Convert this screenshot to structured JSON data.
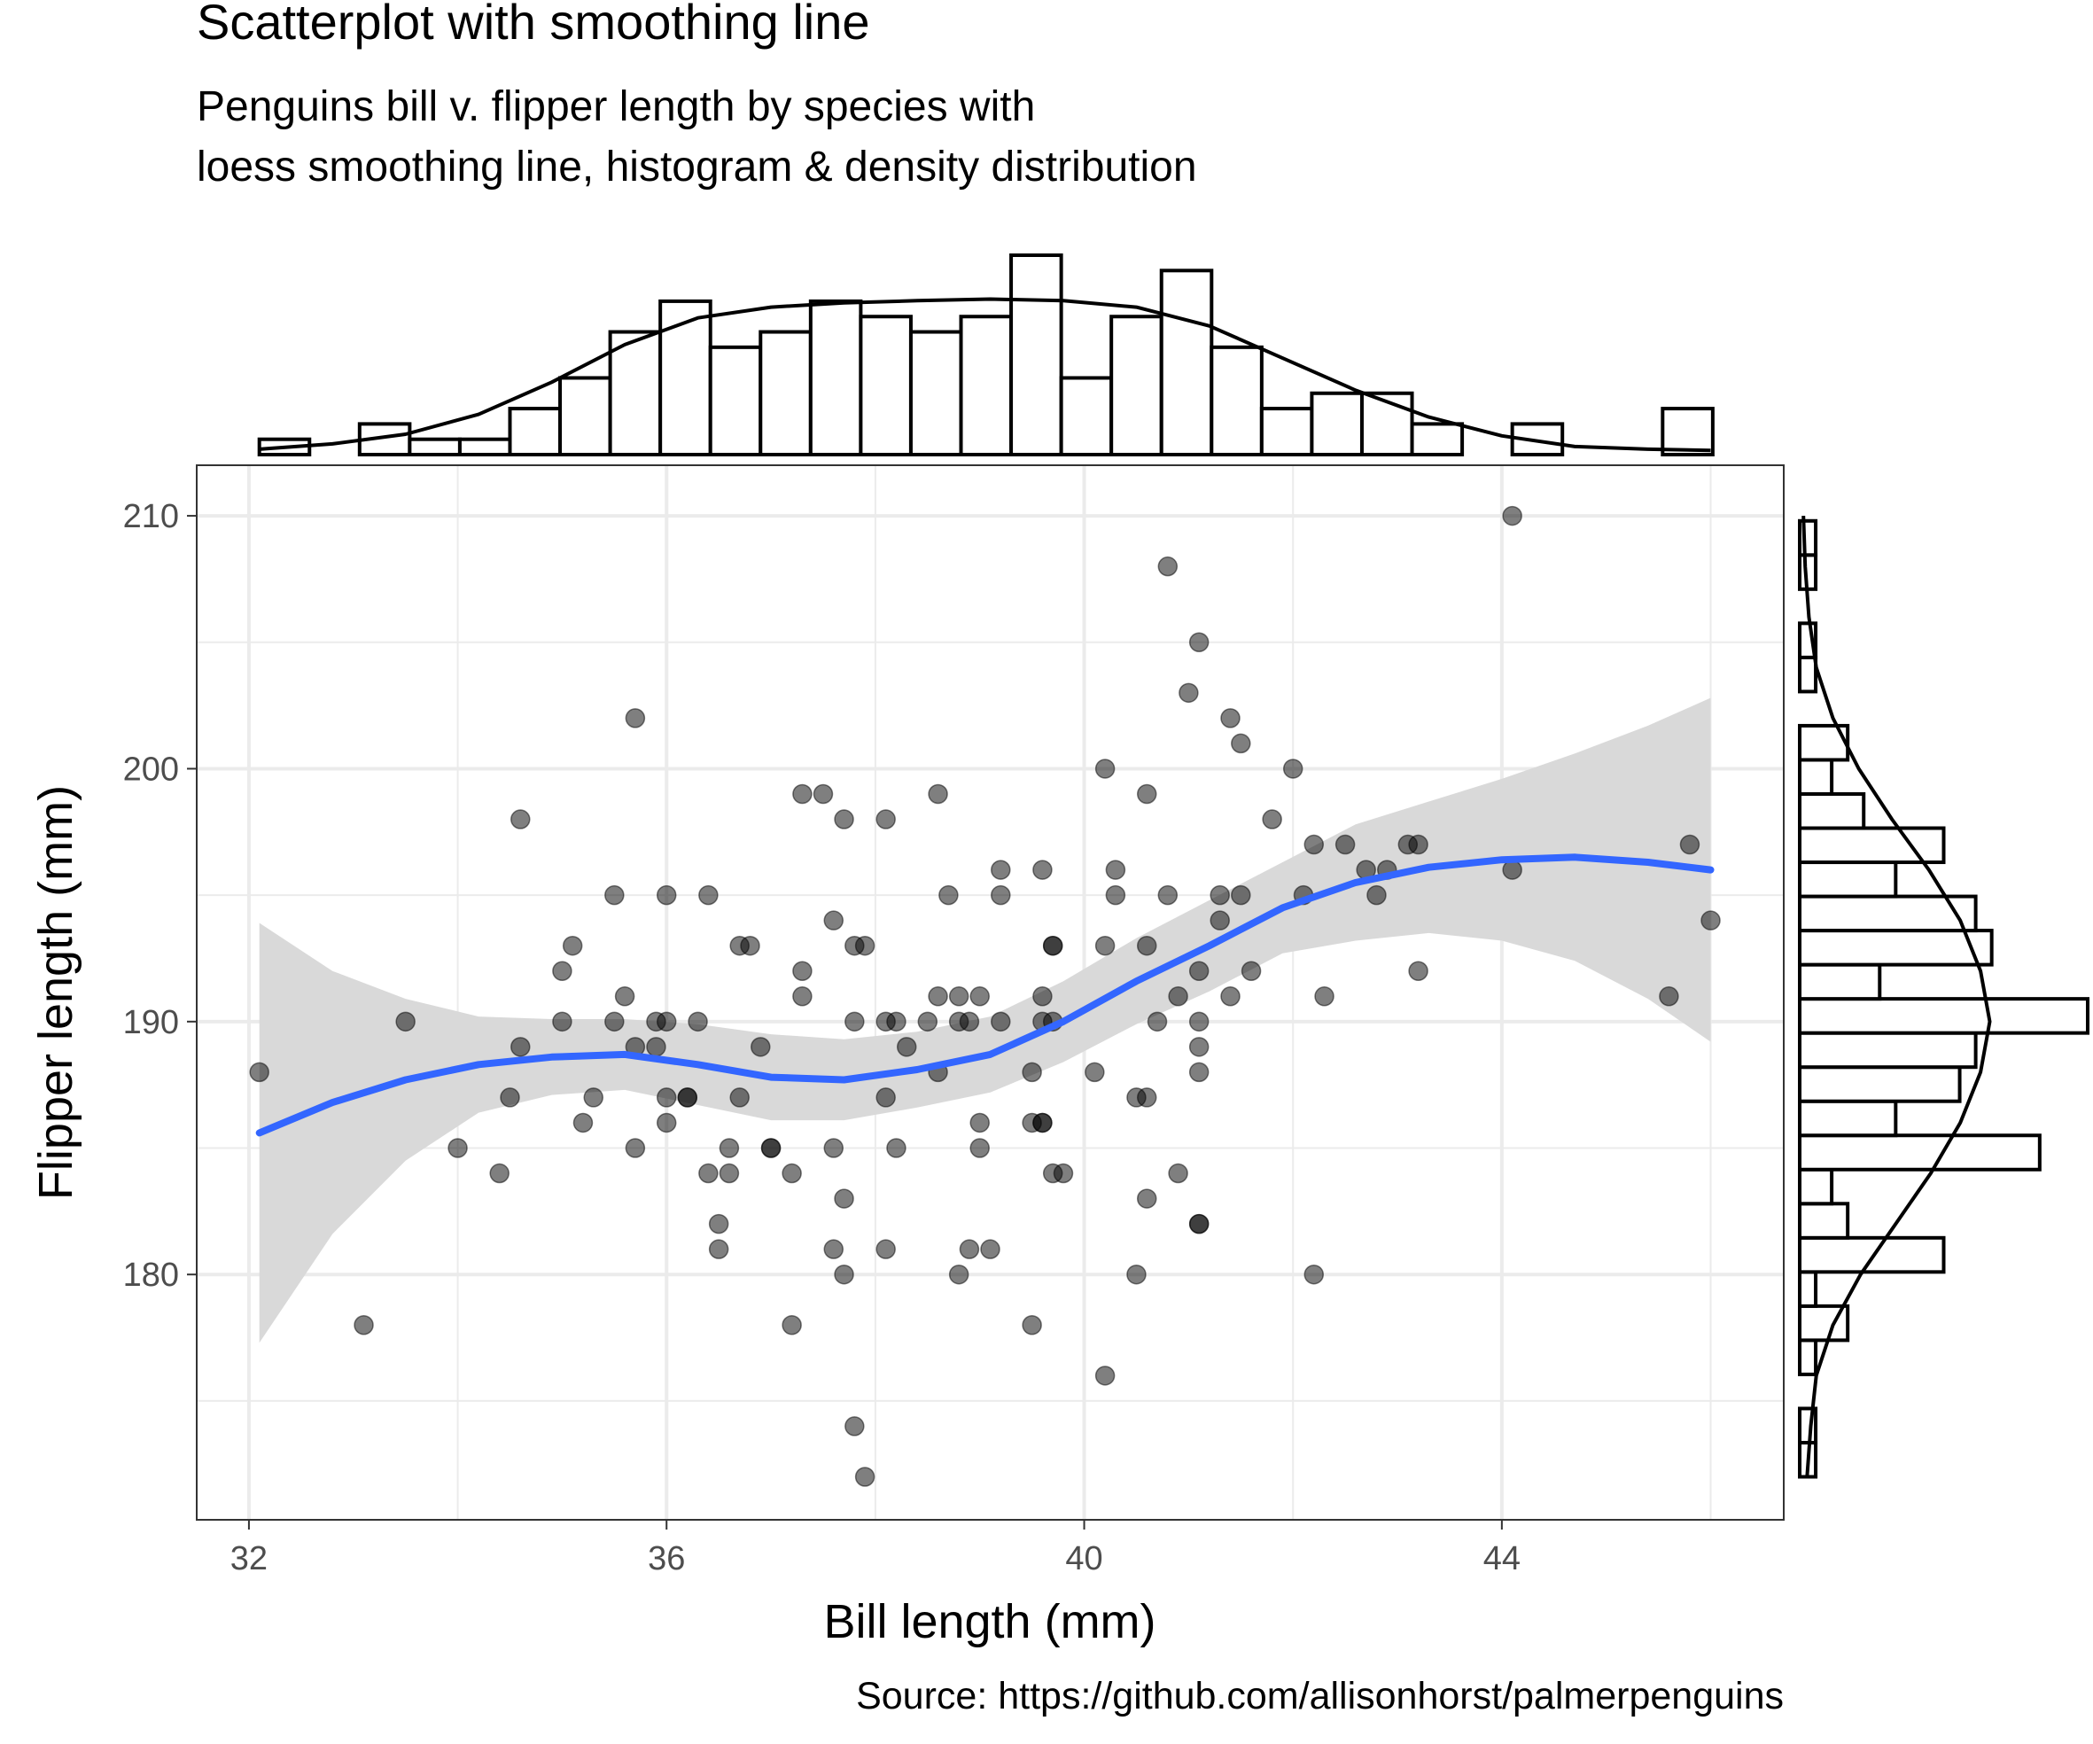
{
  "chart_data": {
    "type": "scatter",
    "title": "Scatterplot with smoothing line",
    "subtitle_lines": [
      "Penguins bill v. flipper length by species with",
      "loess smoothing line, histogram & density distribution"
    ],
    "caption": "Source: https://github.com/allisonhorst/palmerpenguins",
    "xlabel": "Bill length (mm)",
    "ylabel": "Flipper length (mm)",
    "xlim": [
      31.5,
      46.7
    ],
    "ylim": [
      170.3,
      212.0
    ],
    "x_ticks": [
      32,
      36,
      40,
      44
    ],
    "x_tick_labels": [
      "32",
      "36",
      "40",
      "44"
    ],
    "y_ticks": [
      180,
      190,
      200,
      210
    ],
    "y_tick_labels": [
      "180",
      "190",
      "200",
      "210"
    ],
    "x_minor": [
      34,
      38,
      42,
      46
    ],
    "y_minor": [
      175,
      185,
      195,
      205
    ],
    "grid": true,
    "legend": "none",
    "colors": {
      "points": "#000000",
      "point_opacity": 0.5,
      "smooth": "#3366FF",
      "ribbon": "#d9d9d9",
      "grid": "#ebebeb",
      "panel_border": "#333333",
      "tick_text": "#4d4d4d"
    },
    "points": [
      [
        32.1,
        188
      ],
      [
        33.1,
        178
      ],
      [
        33.5,
        190
      ],
      [
        34.0,
        185
      ],
      [
        34.4,
        184
      ],
      [
        34.5,
        187
      ],
      [
        34.6,
        189
      ],
      [
        34.6,
        198
      ],
      [
        35.0,
        190
      ],
      [
        35.0,
        192
      ],
      [
        35.1,
        193
      ],
      [
        35.2,
        186
      ],
      [
        35.3,
        187
      ],
      [
        35.5,
        195
      ],
      [
        35.5,
        190
      ],
      [
        35.6,
        191
      ],
      [
        35.7,
        185
      ],
      [
        35.7,
        189
      ],
      [
        35.7,
        202
      ],
      [
        35.9,
        190
      ],
      [
        35.9,
        189
      ],
      [
        36.0,
        190
      ],
      [
        36.0,
        186
      ],
      [
        36.0,
        187
      ],
      [
        36.0,
        195
      ],
      [
        36.2,
        187
      ],
      [
        36.2,
        187
      ],
      [
        36.3,
        190
      ],
      [
        36.4,
        195
      ],
      [
        36.4,
        184
      ],
      [
        36.5,
        182
      ],
      [
        36.5,
        181
      ],
      [
        36.6,
        185
      ],
      [
        36.6,
        184
      ],
      [
        36.7,
        187
      ],
      [
        36.7,
        193
      ],
      [
        36.8,
        193
      ],
      [
        36.9,
        189
      ],
      [
        37.0,
        185
      ],
      [
        37.0,
        185
      ],
      [
        37.2,
        184
      ],
      [
        37.2,
        178
      ],
      [
        37.3,
        191
      ],
      [
        37.3,
        192
      ],
      [
        37.3,
        199
      ],
      [
        37.5,
        199
      ],
      [
        37.6,
        194
      ],
      [
        37.6,
        185
      ],
      [
        37.6,
        181
      ],
      [
        37.7,
        180
      ],
      [
        37.7,
        198
      ],
      [
        37.7,
        183
      ],
      [
        37.8,
        193
      ],
      [
        37.8,
        190
      ],
      [
        37.8,
        174
      ],
      [
        37.9,
        193
      ],
      [
        37.9,
        172
      ],
      [
        38.1,
        190
      ],
      [
        38.1,
        187
      ],
      [
        38.1,
        181
      ],
      [
        38.1,
        198
      ],
      [
        38.2,
        185
      ],
      [
        38.2,
        190
      ],
      [
        38.3,
        189
      ],
      [
        38.5,
        190
      ],
      [
        38.6,
        188
      ],
      [
        38.6,
        191
      ],
      [
        38.6,
        199
      ],
      [
        38.7,
        195
      ],
      [
        38.8,
        191
      ],
      [
        38.8,
        180
      ],
      [
        38.8,
        190
      ],
      [
        38.9,
        181
      ],
      [
        38.9,
        190
      ],
      [
        39.0,
        186
      ],
      [
        39.0,
        191
      ],
      [
        39.0,
        185
      ],
      [
        39.1,
        181
      ],
      [
        39.2,
        196
      ],
      [
        39.2,
        195
      ],
      [
        39.2,
        190
      ],
      [
        39.5,
        178
      ],
      [
        39.5,
        188
      ],
      [
        39.5,
        186
      ],
      [
        39.6,
        186
      ],
      [
        39.6,
        186
      ],
      [
        39.6,
        196
      ],
      [
        39.6,
        191
      ],
      [
        39.6,
        190
      ],
      [
        39.7,
        193
      ],
      [
        39.7,
        193
      ],
      [
        39.7,
        190
      ],
      [
        39.7,
        184
      ],
      [
        39.8,
        184
      ],
      [
        40.1,
        188
      ],
      [
        40.2,
        200
      ],
      [
        40.2,
        176
      ],
      [
        40.2,
        193
      ],
      [
        40.3,
        195
      ],
      [
        40.3,
        196
      ],
      [
        40.5,
        187
      ],
      [
        40.5,
        180
      ],
      [
        40.6,
        199
      ],
      [
        40.6,
        183
      ],
      [
        40.6,
        187
      ],
      [
        40.6,
        193
      ],
      [
        40.7,
        190
      ],
      [
        40.8,
        195
      ],
      [
        40.8,
        208
      ],
      [
        40.9,
        191
      ],
      [
        40.9,
        184
      ],
      [
        41.0,
        203
      ],
      [
        41.1,
        205
      ],
      [
        41.1,
        192
      ],
      [
        41.1,
        190
      ],
      [
        41.1,
        188
      ],
      [
        41.1,
        189
      ],
      [
        41.1,
        182
      ],
      [
        41.1,
        182
      ],
      [
        41.3,
        194
      ],
      [
        41.3,
        195
      ],
      [
        41.4,
        191
      ],
      [
        41.4,
        202
      ],
      [
        41.5,
        195
      ],
      [
        41.5,
        201
      ],
      [
        41.6,
        192
      ],
      [
        41.8,
        198
      ],
      [
        42.0,
        200
      ],
      [
        42.1,
        195
      ],
      [
        42.2,
        197
      ],
      [
        42.2,
        180
      ],
      [
        42.3,
        191
      ],
      [
        42.5,
        197
      ],
      [
        42.7,
        196
      ],
      [
        42.8,
        195
      ],
      [
        42.9,
        196
      ],
      [
        43.1,
        197
      ],
      [
        43.2,
        192
      ],
      [
        43.2,
        197
      ],
      [
        44.1,
        210
      ],
      [
        44.1,
        196
      ],
      [
        45.6,
        191
      ],
      [
        45.8,
        197
      ],
      [
        46.0,
        194
      ]
    ],
    "smooth_x": [
      32.1,
      32.8,
      33.5,
      34.2,
      34.9,
      35.6,
      36.3,
      37.0,
      37.7,
      38.4,
      39.1,
      39.8,
      40.5,
      41.2,
      41.9,
      42.6,
      43.3,
      44.0,
      44.7,
      45.4,
      46.0
    ],
    "smooth_y": [
      185.6,
      186.8,
      187.7,
      188.3,
      188.6,
      188.7,
      188.3,
      187.8,
      187.7,
      188.1,
      188.7,
      190.0,
      191.6,
      193.0,
      194.5,
      195.5,
      196.1,
      196.4,
      196.5,
      196.3,
      196.0
    ],
    "ribbon_upper": [
      193.9,
      192.0,
      190.9,
      190.2,
      190.1,
      190.1,
      189.9,
      189.5,
      189.3,
      189.6,
      190.2,
      191.6,
      193.3,
      194.8,
      196.3,
      197.8,
      198.7,
      199.6,
      200.6,
      201.7,
      202.8
    ],
    "ribbon_lower": [
      177.3,
      181.6,
      184.5,
      186.4,
      187.1,
      187.3,
      186.7,
      186.1,
      186.1,
      186.6,
      187.2,
      188.4,
      189.9,
      191.2,
      192.7,
      193.2,
      193.5,
      193.2,
      192.4,
      190.9,
      189.2
    ],
    "top_histogram": {
      "bin_width": 0.48,
      "bins": [
        {
          "x": 32.1,
          "count": 1
        },
        {
          "x": 32.58,
          "count": 0
        },
        {
          "x": 33.06,
          "count": 2
        },
        {
          "x": 33.54,
          "count": 1
        },
        {
          "x": 34.02,
          "count": 1
        },
        {
          "x": 34.5,
          "count": 3
        },
        {
          "x": 34.98,
          "count": 5
        },
        {
          "x": 35.46,
          "count": 8
        },
        {
          "x": 35.94,
          "count": 10
        },
        {
          "x": 36.42,
          "count": 7
        },
        {
          "x": 36.9,
          "count": 8
        },
        {
          "x": 37.38,
          "count": 10
        },
        {
          "x": 37.86,
          "count": 9
        },
        {
          "x": 38.34,
          "count": 8
        },
        {
          "x": 38.82,
          "count": 9
        },
        {
          "x": 39.3,
          "count": 13
        },
        {
          "x": 39.78,
          "count": 5
        },
        {
          "x": 40.26,
          "count": 9
        },
        {
          "x": 40.74,
          "count": 12
        },
        {
          "x": 41.22,
          "count": 7
        },
        {
          "x": 41.7,
          "count": 3
        },
        {
          "x": 42.18,
          "count": 4
        },
        {
          "x": 42.66,
          "count": 4
        },
        {
          "x": 43.14,
          "count": 2
        },
        {
          "x": 43.62,
          "count": 0
        },
        {
          "x": 44.1,
          "count": 2
        },
        {
          "x": 44.58,
          "count": 0
        },
        {
          "x": 45.06,
          "count": 0
        },
        {
          "x": 45.54,
          "count": 3
        }
      ],
      "density_x": [
        32.1,
        32.8,
        33.5,
        34.2,
        34.9,
        35.6,
        36.3,
        37.0,
        37.7,
        38.4,
        39.1,
        39.8,
        40.5,
        41.2,
        41.9,
        42.6,
        43.3,
        44.0,
        44.7,
        45.4,
        46.0
      ],
      "density_y": [
        0.01,
        0.02,
        0.038,
        0.075,
        0.135,
        0.205,
        0.255,
        0.275,
        0.283,
        0.287,
        0.29,
        0.287,
        0.275,
        0.24,
        0.18,
        0.12,
        0.07,
        0.035,
        0.015,
        0.01,
        0.008
      ]
    },
    "right_histogram": {
      "bin_width": 1.35,
      "bins": [
        {
          "y": 172.0,
          "count": 1
        },
        {
          "y": 173.35,
          "count": 1
        },
        {
          "y": 174.7,
          "count": 0
        },
        {
          "y": 176.05,
          "count": 1
        },
        {
          "y": 177.4,
          "count": 3
        },
        {
          "y": 178.75,
          "count": 1
        },
        {
          "y": 180.1,
          "count": 9
        },
        {
          "y": 181.45,
          "count": 3
        },
        {
          "y": 182.8,
          "count": 2
        },
        {
          "y": 184.15,
          "count": 15
        },
        {
          "y": 185.5,
          "count": 6
        },
        {
          "y": 186.85,
          "count": 10
        },
        {
          "y": 188.2,
          "count": 11
        },
        {
          "y": 189.55,
          "count": 18
        },
        {
          "y": 190.9,
          "count": 5
        },
        {
          "y": 192.25,
          "count": 12
        },
        {
          "y": 193.6,
          "count": 11
        },
        {
          "y": 194.95,
          "count": 6
        },
        {
          "y": 196.3,
          "count": 9
        },
        {
          "y": 197.65,
          "count": 4
        },
        {
          "y": 199.0,
          "count": 2
        },
        {
          "y": 200.35,
          "count": 3
        },
        {
          "y": 201.7,
          "count": 0
        },
        {
          "y": 203.05,
          "count": 1
        },
        {
          "y": 204.4,
          "count": 1
        },
        {
          "y": 205.75,
          "count": 0
        },
        {
          "y": 207.1,
          "count": 1
        },
        {
          "y": 208.45,
          "count": 1
        }
      ],
      "density_y": [
        172,
        174,
        176,
        178,
        180,
        182,
        184,
        186,
        188,
        190,
        192,
        194,
        196,
        198,
        200,
        202,
        204,
        206,
        208,
        210
      ],
      "density_x": [
        0.4,
        0.6,
        0.9,
        1.8,
        3.3,
        5.2,
        7.1,
        8.7,
        9.8,
        10.3,
        9.8,
        8.7,
        7.0,
        5.0,
        3.2,
        1.8,
        0.9,
        0.5,
        0.3,
        0.2
      ]
    }
  }
}
